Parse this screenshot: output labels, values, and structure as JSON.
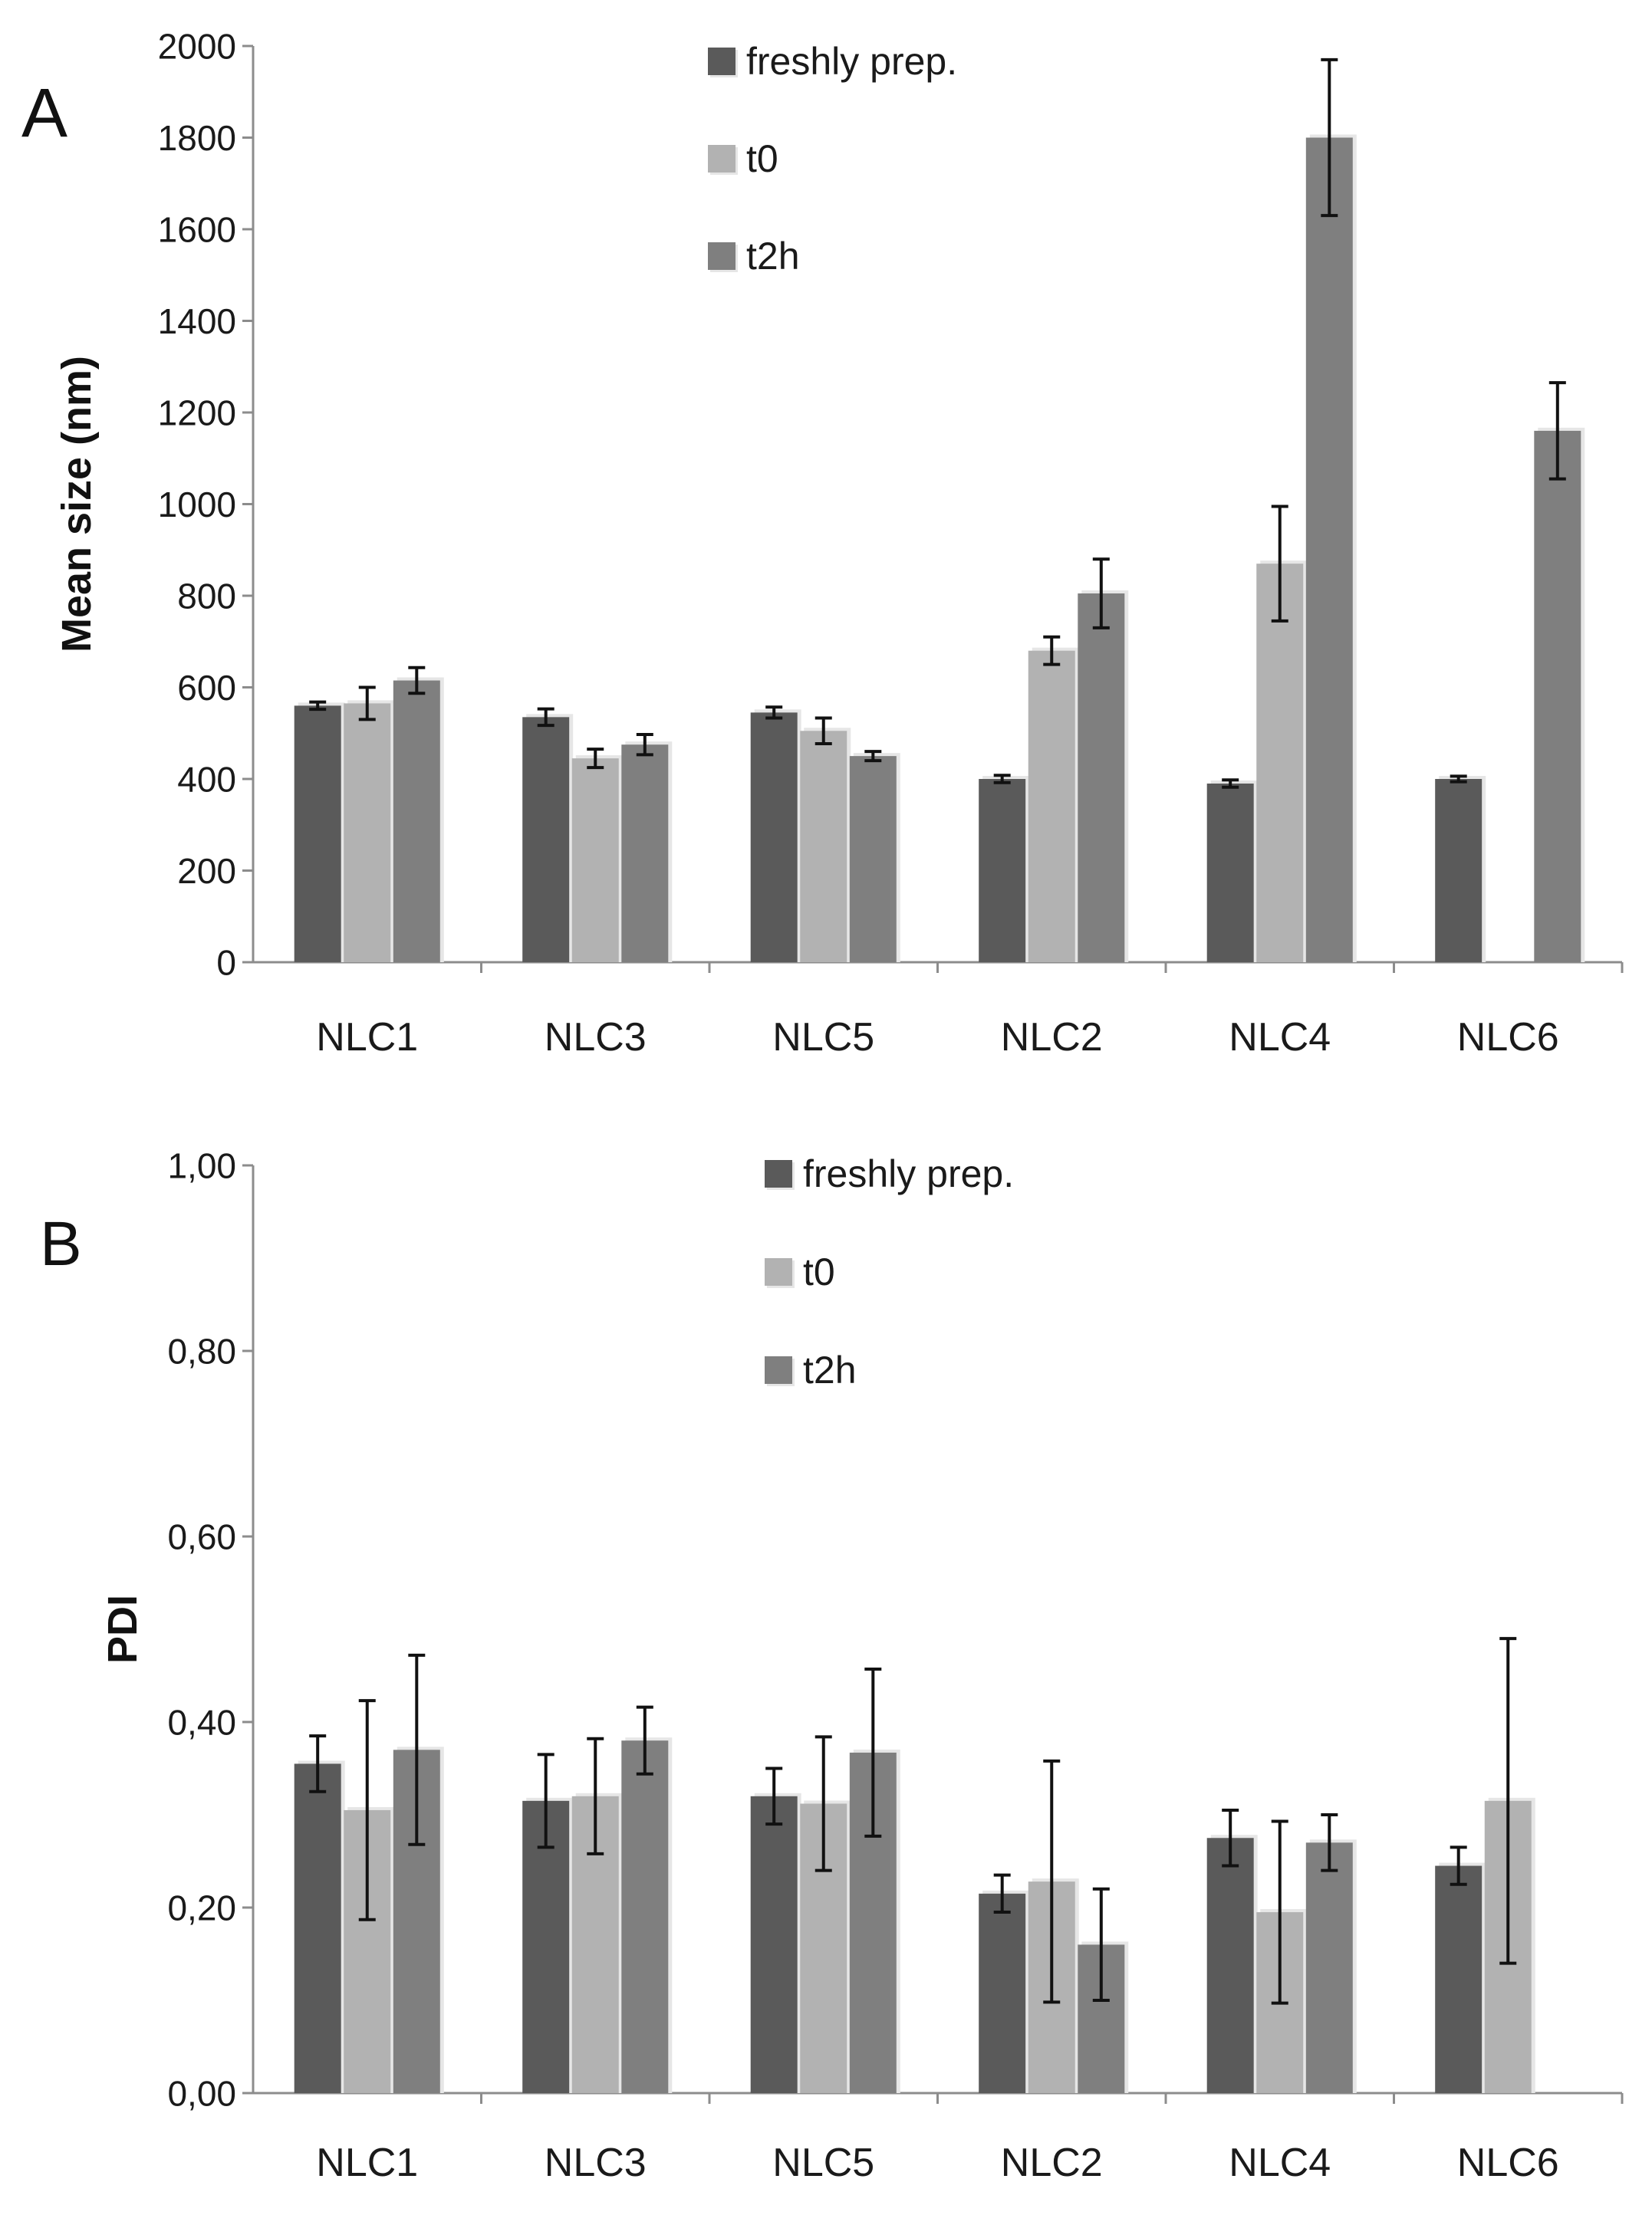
{
  "chart_data": [
    {
      "type": "bar",
      "panel_label": "A",
      "categories": [
        "NLC1",
        "NLC3",
        "NLC5",
        "NLC2",
        "NLC4",
        "NLC6"
      ],
      "ylabel": "Mean size (nm)",
      "ylim": [
        0,
        2000
      ],
      "yticks": [
        0,
        200,
        400,
        600,
        800,
        1000,
        1200,
        1400,
        1600,
        1800,
        2000
      ],
      "ytick_labels": [
        "0",
        "200",
        "400",
        "600",
        "800",
        "1000",
        "1200",
        "1400",
        "1600",
        "1800",
        "2000"
      ],
      "grid": false,
      "legend_position": "top-center",
      "series": [
        {
          "name": "freshly prep.",
          "color": "#5a5a5a",
          "values": [
            560,
            535,
            545,
            400,
            390,
            400
          ],
          "errors": [
            8,
            18,
            12,
            8,
            8,
            6
          ]
        },
        {
          "name": "t0",
          "color": "#b2b2b2",
          "values": [
            565,
            445,
            505,
            680,
            870,
            null
          ],
          "errors": [
            35,
            20,
            28,
            30,
            125,
            null
          ]
        },
        {
          "name": "t2h",
          "color": "#7f7f7f",
          "values": [
            615,
            475,
            450,
            805,
            1800,
            1160
          ],
          "errors": [
            28,
            22,
            10,
            75,
            170,
            105
          ]
        }
      ]
    },
    {
      "type": "bar",
      "panel_label": "B",
      "categories": [
        "NLC1",
        "NLC3",
        "NLC5",
        "NLC2",
        "NLC4",
        "NLC6"
      ],
      "ylabel": "PDI",
      "ylim": [
        0,
        1
      ],
      "yticks": [
        0,
        0.2,
        0.4,
        0.6,
        0.8,
        1.0
      ],
      "ytick_labels": [
        "0,00",
        "0,20",
        "0,40",
        "0,60",
        "0,80",
        "1,00"
      ],
      "grid": false,
      "legend_position": "top-center",
      "series": [
        {
          "name": "freshly prep.",
          "color": "#5a5a5a",
          "values": [
            0.355,
            0.315,
            0.32,
            0.215,
            0.275,
            0.245
          ],
          "errors": [
            0.03,
            0.05,
            0.03,
            0.02,
            0.03,
            0.02
          ]
        },
        {
          "name": "t0",
          "color": "#b2b2b2",
          "values": [
            0.305,
            0.32,
            0.312,
            0.228,
            0.195,
            0.315
          ],
          "errors": [
            0.118,
            0.062,
            0.072,
            0.13,
            0.098,
            0.175
          ]
        },
        {
          "name": "t2h",
          "color": "#7f7f7f",
          "values": [
            0.37,
            0.38,
            0.367,
            0.16,
            0.27,
            null
          ],
          "errors": [
            0.102,
            0.036,
            0.09,
            0.06,
            0.03,
            null
          ]
        }
      ]
    }
  ]
}
